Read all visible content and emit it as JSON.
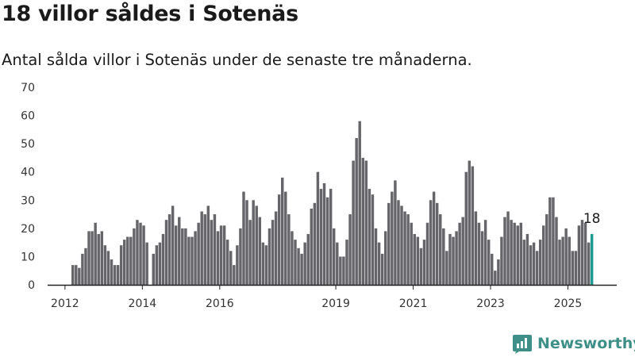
{
  "header": {
    "title": "18 villor såldes i Sotenäs",
    "subtitle": "Antal sålda villor i Sotenäs under de senaste tre månaderna."
  },
  "brand": {
    "name": "Newsworthy",
    "icon": "bar-chart-logo-icon",
    "color": "#3e8f87"
  },
  "colors": {
    "bar": "#66666a",
    "highlight": "#1f9a93",
    "axis": "#222222",
    "grid": "#dddddd"
  },
  "chart_data": {
    "type": "bar",
    "title": "18 villor såldes i Sotenäs",
    "subtitle": "Antal sålda villor i Sotenäs under de senaste tre månaderna.",
    "xlabel": "",
    "ylabel": "",
    "ylim": [
      0,
      70
    ],
    "yticks": [
      0,
      10,
      20,
      30,
      40,
      50,
      60,
      70
    ],
    "grid": "none",
    "x_tick_labels": [
      "2012",
      "2014",
      "2016",
      "2019",
      "2021",
      "2023",
      "2025"
    ],
    "start_period": "2012-03",
    "frequency": "monthly",
    "end_label": "18",
    "series": [
      {
        "values": [
          7,
          7,
          6,
          11,
          13,
          19,
          19,
          22,
          18,
          19,
          14,
          12,
          9,
          7,
          7,
          14,
          16,
          17,
          17,
          20,
          23,
          22,
          21,
          15,
          0,
          11,
          14,
          15,
          18,
          23,
          25,
          28,
          21,
          24,
          20,
          20,
          17,
          17,
          19,
          22,
          26,
          25,
          28,
          23,
          25,
          19,
          21,
          21,
          16,
          12,
          7,
          14,
          20,
          33,
          30,
          23,
          30,
          28,
          24,
          15,
          14,
          20,
          23,
          26,
          32,
          38,
          33,
          25,
          19,
          16,
          13,
          11,
          15,
          18,
          27,
          29,
          40,
          34,
          36,
          31,
          34,
          20,
          15,
          10,
          10,
          16,
          25,
          44,
          52,
          58,
          45,
          44,
          34,
          32,
          20,
          15,
          11,
          19,
          29,
          33,
          37,
          30,
          28,
          26,
          25,
          22,
          18,
          17,
          13,
          16,
          22,
          30,
          33,
          29,
          25,
          20,
          12,
          18,
          17,
          19,
          22,
          24,
          40,
          44,
          42,
          26,
          22,
          19,
          23,
          16,
          11,
          5,
          9,
          17,
          24,
          26,
          23,
          22,
          21,
          22,
          16,
          18,
          14,
          15,
          12,
          16,
          21,
          25,
          31,
          31,
          24,
          16,
          17,
          20,
          17,
          12,
          12,
          21,
          23,
          22,
          15,
          18
        ]
      }
    ]
  }
}
